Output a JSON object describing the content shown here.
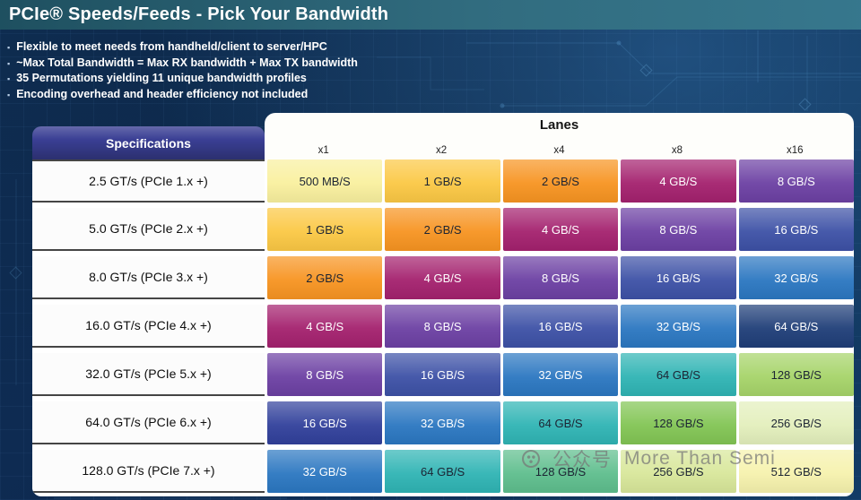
{
  "title": "PCIe® Speeds/Feeds - Pick Your Bandwidth",
  "bullet_marker": "▪",
  "bullets": [
    "Flexible to meet needs from handheld/client to server/HPC",
    "~Max Total Bandwidth = Max RX bandwidth + Max TX bandwidth",
    "35 Permutations yielding 11 unique bandwidth profiles",
    "Encoding overhead and header efficiency not included"
  ],
  "colors": {
    "slide_bg": "#0D2A4A",
    "titlebar_bg": "#266478",
    "spec_header_bg": "#3A3F94",
    "table_bg": "#FFFFFF"
  },
  "table": {
    "lanes_header": "Lanes",
    "spec_header": "Specifications",
    "columns": [
      "x1",
      "x2",
      "x4",
      "x8",
      "x16"
    ],
    "rows": [
      {
        "spec": "2.5 GT/s (PCIe 1.x +)",
        "cells": [
          {
            "text": "500 MB/S",
            "bg": "#F9F09E",
            "fg": "#1C2433"
          },
          {
            "text": "1 GB/S",
            "bg": "#FBC844",
            "fg": "#1C2433"
          },
          {
            "text": "2 GB/S",
            "bg": "#F79421",
            "fg": "#1C2433"
          },
          {
            "text": "4 GB/S",
            "bg": "#A4216E",
            "fg": "#FFFFFF"
          },
          {
            "text": "8 GB/S",
            "bg": "#6C40A3",
            "fg": "#FFFFFF"
          }
        ]
      },
      {
        "spec": "5.0 GT/s (PCIe 2.x +)",
        "cells": [
          {
            "text": "1 GB/S",
            "bg": "#FBC844",
            "fg": "#1C2433"
          },
          {
            "text": "2 GB/S",
            "bg": "#F79421",
            "fg": "#1C2433"
          },
          {
            "text": "4 GB/S",
            "bg": "#A4216E",
            "fg": "#FFFFFF"
          },
          {
            "text": "8 GB/S",
            "bg": "#6C40A3",
            "fg": "#FFFFFF"
          },
          {
            "text": "16 GB/S",
            "bg": "#3D51A6",
            "fg": "#FFFFFF"
          }
        ]
      },
      {
        "spec": "8.0 GT/s (PCIe 3.x +)",
        "cells": [
          {
            "text": "2 GB/S",
            "bg": "#F79421",
            "fg": "#1C2433"
          },
          {
            "text": "4 GB/S",
            "bg": "#A4216E",
            "fg": "#FFFFFF"
          },
          {
            "text": "8 GB/S",
            "bg": "#6C40A3",
            "fg": "#FFFFFF"
          },
          {
            "text": "16 GB/S",
            "bg": "#3D51A6",
            "fg": "#FFFFFF"
          },
          {
            "text": "32 GB/S",
            "bg": "#2B77C1",
            "fg": "#FFFFFF"
          }
        ]
      },
      {
        "spec": "16.0 GT/s (PCIe 4.x +)",
        "cells": [
          {
            "text": "4 GB/S",
            "bg": "#A4216E",
            "fg": "#FFFFFF"
          },
          {
            "text": "8 GB/S",
            "bg": "#6C40A3",
            "fg": "#FFFFFF"
          },
          {
            "text": "16 GB/S",
            "bg": "#3D51A6",
            "fg": "#FFFFFF"
          },
          {
            "text": "32 GB/S",
            "bg": "#2B77C1",
            "fg": "#FFFFFF"
          },
          {
            "text": "64 GB/S",
            "bg": "#1F3E78",
            "fg": "#FFFFFF"
          }
        ]
      },
      {
        "spec": "32.0 GT/s (PCIe 5.x +)",
        "cells": [
          {
            "text": "8 GB/S",
            "bg": "#6C40A3",
            "fg": "#FFFFFF"
          },
          {
            "text": "16 GB/S",
            "bg": "#3D51A6",
            "fg": "#FFFFFF"
          },
          {
            "text": "32 GB/S",
            "bg": "#2B77C1",
            "fg": "#FFFFFF"
          },
          {
            "text": "64 GB/S",
            "bg": "#2FB4B4",
            "fg": "#1C2433"
          },
          {
            "text": "128 GB/S",
            "bg": "#A6D469",
            "fg": "#1C2433"
          }
        ]
      },
      {
        "spec": "64.0 GT/s (PCIe 6.x +)",
        "cells": [
          {
            "text": "16 GB/S",
            "bg": "#31409B",
            "fg": "#FFFFFF"
          },
          {
            "text": "32 GB/S",
            "bg": "#2B77C1",
            "fg": "#FFFFFF"
          },
          {
            "text": "64 GB/S",
            "bg": "#2FB4B4",
            "fg": "#1C2433"
          },
          {
            "text": "128 GB/S",
            "bg": "#82C554",
            "fg": "#1C2433"
          },
          {
            "text": "256 GB/S",
            "bg": "#E3EFBC",
            "fg": "#1C2433"
          }
        ]
      },
      {
        "spec": "128.0 GT/s (PCIe 7.x +)",
        "cells": [
          {
            "text": "32 GB/S",
            "bg": "#2B77C1",
            "fg": "#FFFFFF"
          },
          {
            "text": "64 GB/S",
            "bg": "#2FB4B4",
            "fg": "#1C2433"
          },
          {
            "text": "128 GB/S",
            "bg": "#5EBE8D",
            "fg": "#1C2433"
          },
          {
            "text": "256 GB/S",
            "bg": "#D8E79A",
            "fg": "#1C2433"
          },
          {
            "text": "512 GB/S",
            "bg": "#F6F2AD",
            "fg": "#1C2433"
          }
        ]
      }
    ]
  },
  "watermark": {
    "label": "公众号",
    "name": "More Than Semi"
  }
}
